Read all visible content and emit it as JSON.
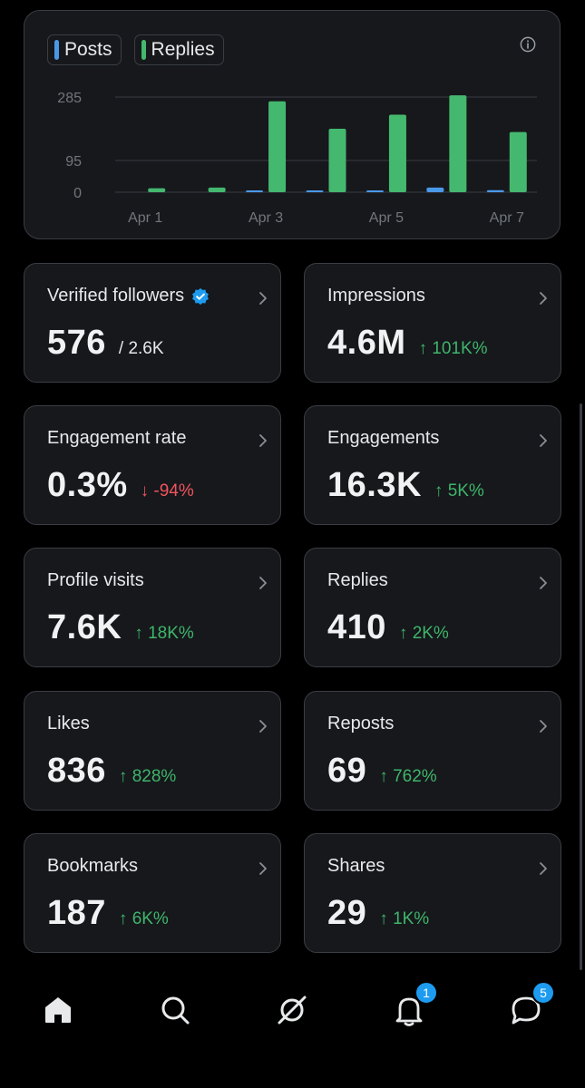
{
  "chart": {
    "legend": [
      {
        "label": "Posts",
        "color": "#4a99e9"
      },
      {
        "label": "Replies",
        "color": "#45b86f"
      }
    ],
    "info_icon": "info-icon"
  },
  "chart_data": {
    "type": "bar",
    "categories": [
      "Apr 1",
      "Apr 2",
      "Apr 3",
      "Apr 4",
      "Apr 5",
      "Apr 6",
      "Apr 7"
    ],
    "x_tick_labels": [
      "Apr 1",
      "Apr 3",
      "Apr 5",
      "Apr 7"
    ],
    "y_ticks": [
      "285",
      "95",
      "0"
    ],
    "y_tick_values": [
      285,
      95,
      0
    ],
    "ylim": [
      0,
      285
    ],
    "series": [
      {
        "name": "Posts",
        "color": "#4a99e9",
        "values": [
          0,
          0,
          3,
          2,
          1,
          14,
          6
        ]
      },
      {
        "name": "Replies",
        "color": "#45b86f",
        "values": [
          12,
          14,
          272,
          190,
          232,
          290,
          180
        ]
      }
    ],
    "grid": true
  },
  "stats": [
    {
      "title": "Verified followers",
      "value": "576",
      "sub": "/ 2.6K",
      "verified": true
    },
    {
      "title": "Impressions",
      "value": "4.6M",
      "change": "101K%",
      "direction": "up"
    },
    {
      "title": "Engagement rate",
      "value": "0.3%",
      "change": "-94%",
      "direction": "down"
    },
    {
      "title": "Engagements",
      "value": "16.3K",
      "change": "5K%",
      "direction": "up"
    },
    {
      "title": "Profile visits",
      "value": "7.6K",
      "change": "18K%",
      "direction": "up"
    },
    {
      "title": "Replies",
      "value": "410",
      "change": "2K%",
      "direction": "up"
    },
    {
      "title": "Likes",
      "value": "836",
      "change": "828%",
      "direction": "up"
    },
    {
      "title": "Reposts",
      "value": "69",
      "change": "762%",
      "direction": "up"
    },
    {
      "title": "Bookmarks",
      "value": "187",
      "change": "6K%",
      "direction": "up"
    },
    {
      "title": "Shares",
      "value": "29",
      "change": "1K%",
      "direction": "up"
    }
  ],
  "nav": {
    "items": [
      {
        "name": "home-icon"
      },
      {
        "name": "search-icon"
      },
      {
        "name": "grok-icon"
      },
      {
        "name": "notifications-icon",
        "badge": "1"
      },
      {
        "name": "messages-icon",
        "badge": "5"
      }
    ]
  }
}
